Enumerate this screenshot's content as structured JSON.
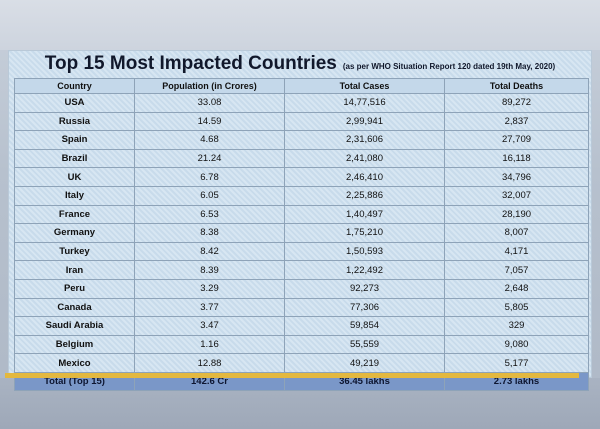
{
  "title": "Top 15 Most Impacted Countries",
  "subtitle": "(as per WHO Situation Report 120 dated 19th May, 2020)",
  "headers": [
    "Country",
    "Population (in Crores)",
    "Total Cases",
    "Total Deaths"
  ],
  "rows": [
    {
      "country": "USA",
      "population": "33.08",
      "cases": "14,77,516",
      "deaths": "89,272"
    },
    {
      "country": "Russia",
      "population": "14.59",
      "cases": "2,99,941",
      "deaths": "2,837"
    },
    {
      "country": "Spain",
      "population": "4.68",
      "cases": "2,31,606",
      "deaths": "27,709"
    },
    {
      "country": "Brazil",
      "population": "21.24",
      "cases": "2,41,080",
      "deaths": "16,118"
    },
    {
      "country": "UK",
      "population": "6.78",
      "cases": "2,46,410",
      "deaths": "34,796"
    },
    {
      "country": "Italy",
      "population": "6.05",
      "cases": "2,25,886",
      "deaths": "32,007"
    },
    {
      "country": "France",
      "population": "6.53",
      "cases": "1,40,497",
      "deaths": "28,190"
    },
    {
      "country": "Germany",
      "population": "8.38",
      "cases": "1,75,210",
      "deaths": "8,007"
    },
    {
      "country": "Turkey",
      "population": "8.42",
      "cases": "1,50,593",
      "deaths": "4,171"
    },
    {
      "country": "Iran",
      "population": "8.39",
      "cases": "1,22,492",
      "deaths": "7,057"
    },
    {
      "country": "Peru",
      "population": "3.29",
      "cases": "92,273",
      "deaths": "2,648"
    },
    {
      "country": "Canada",
      "population": "3.77",
      "cases": "77,306",
      "deaths": "5,805"
    },
    {
      "country": "Saudi Arabia",
      "population": "3.47",
      "cases": "59,854",
      "deaths": "329"
    },
    {
      "country": "Belgium",
      "population": "1.16",
      "cases": "55,559",
      "deaths": "9,080"
    },
    {
      "country": "Mexico",
      "population": "12.88",
      "cases": "49,219",
      "deaths": "5,177"
    }
  ],
  "total": {
    "label": "Total (Top 15)",
    "population": "142.6 Cr",
    "cases": "36.45 lakhs",
    "deaths": "2.73 lakhs"
  },
  "colors": {
    "header_bg": "#c4d8ea",
    "total_bg": "#7a97c8",
    "grid": "#8ea3b8",
    "cut_row": "#e3b83f"
  }
}
